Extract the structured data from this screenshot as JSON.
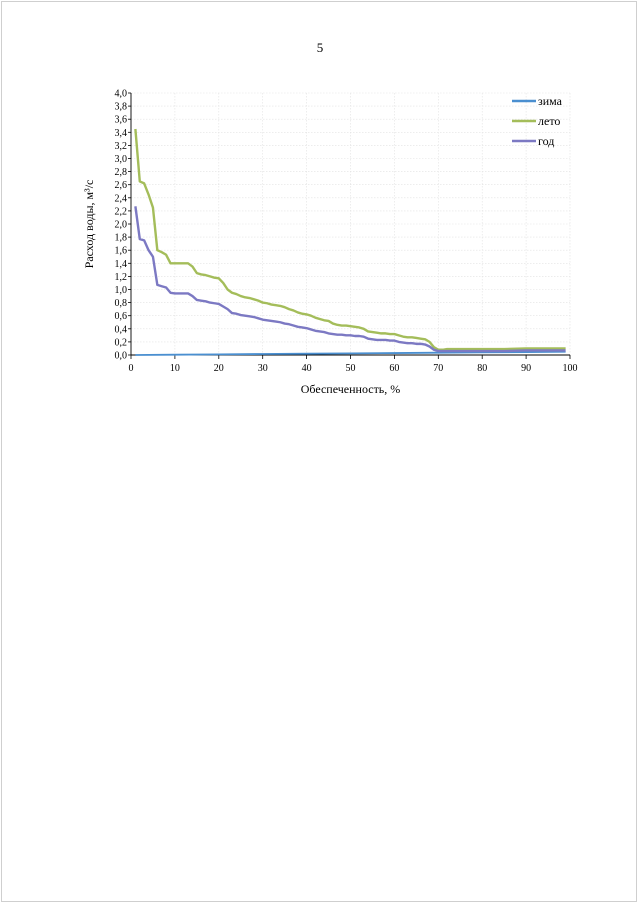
{
  "page": {
    "number": "5"
  },
  "colors": {
    "zima": "#4a8fd0",
    "leto": "#a4bd5a",
    "god": "#7c79c3"
  },
  "chart_data": {
    "type": "line",
    "title": "",
    "xlabel": "Обеспеченность, %",
    "ylabel": "Расход воды, м³/с",
    "xlim": [
      0,
      100
    ],
    "ylim": [
      0,
      4.0
    ],
    "x_ticks": [
      "0",
      "10",
      "20",
      "30",
      "40",
      "50",
      "60",
      "70",
      "80",
      "90",
      "100"
    ],
    "y_ticks": [
      "0,0",
      "0,2",
      "0,4",
      "0,6",
      "0,8",
      "1,0",
      "1,2",
      "1,4",
      "1,6",
      "1,8",
      "2,0",
      "2,2",
      "2,4",
      "2,6",
      "2,8",
      "3,0",
      "3,2",
      "3,4",
      "3,6",
      "3,8",
      "4,0"
    ],
    "grid": true,
    "legend_position": "top-right",
    "series": [
      {
        "name": "зима",
        "x": [
          1,
          10,
          20,
          30,
          40,
          50,
          60,
          70,
          80,
          90,
          99
        ],
        "y": [
          0.0,
          0.005,
          0.01,
          0.015,
          0.02,
          0.025,
          0.03,
          0.035,
          0.04,
          0.045,
          0.05
        ]
      },
      {
        "name": "лето",
        "x": [
          1,
          2,
          3,
          4,
          5,
          6,
          7,
          8,
          9,
          10,
          11,
          12,
          13,
          14,
          15,
          16,
          17,
          18,
          19,
          20,
          21,
          22,
          23,
          24,
          25,
          26,
          27,
          28,
          29,
          30,
          31,
          32,
          33,
          34,
          35,
          36,
          37,
          38,
          39,
          40,
          41,
          42,
          43,
          44,
          45,
          46,
          47,
          48,
          49,
          50,
          51,
          52,
          53,
          54,
          55,
          56,
          57,
          58,
          59,
          60,
          61,
          62,
          63,
          64,
          65,
          66,
          67,
          68,
          69,
          70,
          71,
          72,
          73,
          74,
          75,
          76,
          77,
          78,
          80,
          85,
          90,
          95,
          99
        ],
        "y": [
          3.45,
          2.65,
          2.62,
          2.45,
          2.25,
          1.6,
          1.57,
          1.53,
          1.4,
          1.4,
          1.4,
          1.4,
          1.4,
          1.35,
          1.25,
          1.23,
          1.22,
          1.2,
          1.18,
          1.17,
          1.1,
          1.0,
          0.95,
          0.93,
          0.9,
          0.88,
          0.87,
          0.85,
          0.83,
          0.8,
          0.79,
          0.77,
          0.76,
          0.75,
          0.73,
          0.7,
          0.68,
          0.65,
          0.63,
          0.62,
          0.6,
          0.57,
          0.55,
          0.53,
          0.52,
          0.48,
          0.46,
          0.45,
          0.45,
          0.44,
          0.43,
          0.42,
          0.4,
          0.36,
          0.35,
          0.34,
          0.33,
          0.33,
          0.32,
          0.32,
          0.3,
          0.28,
          0.27,
          0.27,
          0.26,
          0.25,
          0.24,
          0.2,
          0.12,
          0.08,
          0.08,
          0.09,
          0.09,
          0.09,
          0.09,
          0.09,
          0.09,
          0.09,
          0.09,
          0.09,
          0.1,
          0.1,
          0.1
        ]
      },
      {
        "name": "год",
        "x": [
          1,
          2,
          3,
          4,
          5,
          6,
          7,
          8,
          9,
          10,
          11,
          12,
          13,
          14,
          15,
          16,
          17,
          18,
          19,
          20,
          21,
          22,
          23,
          24,
          25,
          26,
          27,
          28,
          29,
          30,
          31,
          32,
          33,
          34,
          35,
          36,
          37,
          38,
          39,
          40,
          41,
          42,
          43,
          44,
          45,
          46,
          47,
          48,
          49,
          50,
          51,
          52,
          53,
          54,
          55,
          56,
          57,
          58,
          59,
          60,
          61,
          62,
          63,
          64,
          65,
          66,
          67,
          68,
          69,
          70,
          71,
          72,
          73,
          74,
          75,
          76,
          77,
          78,
          80,
          85,
          90,
          95,
          99
        ],
        "y": [
          2.27,
          1.77,
          1.75,
          1.6,
          1.5,
          1.07,
          1.05,
          1.03,
          0.95,
          0.94,
          0.94,
          0.94,
          0.94,
          0.9,
          0.84,
          0.83,
          0.82,
          0.8,
          0.79,
          0.78,
          0.74,
          0.7,
          0.64,
          0.63,
          0.61,
          0.6,
          0.59,
          0.58,
          0.56,
          0.54,
          0.53,
          0.52,
          0.51,
          0.5,
          0.48,
          0.47,
          0.45,
          0.43,
          0.42,
          0.41,
          0.39,
          0.37,
          0.36,
          0.35,
          0.33,
          0.32,
          0.31,
          0.31,
          0.3,
          0.3,
          0.29,
          0.29,
          0.28,
          0.25,
          0.24,
          0.23,
          0.23,
          0.23,
          0.22,
          0.22,
          0.2,
          0.19,
          0.18,
          0.18,
          0.17,
          0.17,
          0.16,
          0.13,
          0.08,
          0.06,
          0.06,
          0.06,
          0.06,
          0.06,
          0.06,
          0.06,
          0.06,
          0.06,
          0.06,
          0.06,
          0.07,
          0.07,
          0.07
        ]
      }
    ]
  }
}
